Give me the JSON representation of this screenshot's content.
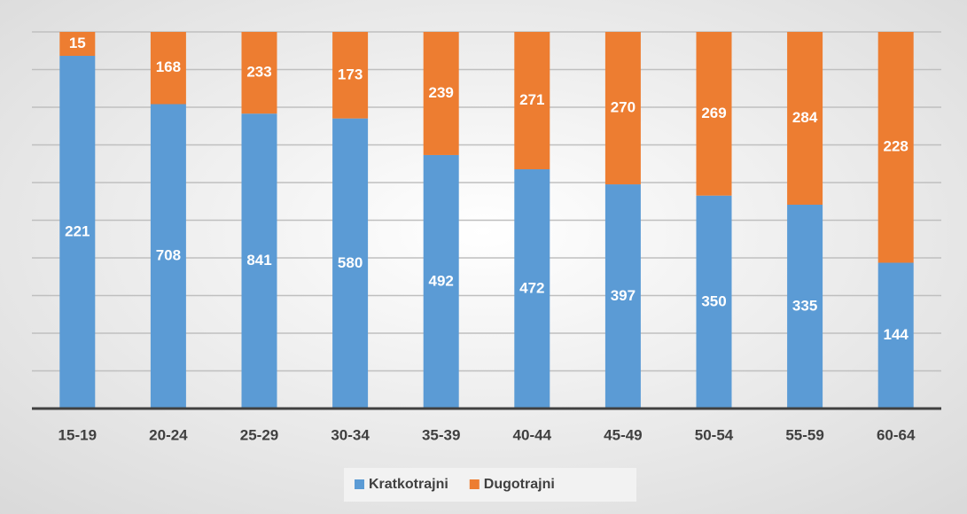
{
  "chart_data": {
    "type": "bar",
    "stacking": "percent",
    "grid": true,
    "categories": [
      "15-19",
      "20-24",
      "25-29",
      "30-34",
      "35-39",
      "40-44",
      "45-49",
      "50-54",
      "55-59",
      "60-64"
    ],
    "series": [
      {
        "name": "Kratkotrajni",
        "color": "#5b9bd5",
        "values": [
          221,
          708,
          841,
          580,
          492,
          472,
          397,
          350,
          335,
          144
        ]
      },
      {
        "name": "Dugotrajni",
        "color": "#ed7d31",
        "values": [
          15,
          168,
          233,
          173,
          239,
          271,
          270,
          269,
          284,
          228
        ]
      }
    ]
  }
}
